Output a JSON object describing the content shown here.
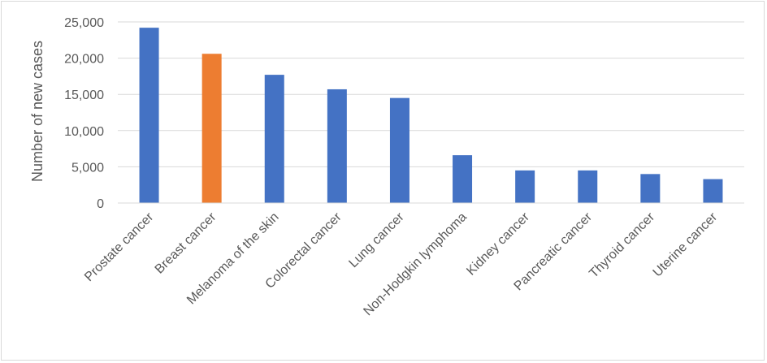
{
  "chart_data": {
    "type": "bar",
    "title": "",
    "xlabel": "",
    "ylabel": "Number of new cases",
    "ylim": [
      0,
      25000
    ],
    "yticks": [
      0,
      5000,
      10000,
      15000,
      20000,
      25000
    ],
    "ytick_labels": [
      "0",
      "5,000",
      "10,000",
      "15,000",
      "20,000",
      "25,000"
    ],
    "grid": true,
    "legend": "none",
    "categories": [
      "Prostate cancer",
      "Breast cancer",
      "Melanoma of the skin",
      "Colorectal cancer",
      "Lung cancer",
      "Non-Hodgkin lymphoma",
      "Kidney cancer",
      "Pancreatic cancer",
      "Thyroid cancer",
      "Uterine cancer"
    ],
    "values": [
      24200,
      20600,
      17700,
      15700,
      14500,
      6600,
      4500,
      4500,
      4000,
      3300
    ],
    "colors": {
      "default": "#4472c4",
      "highlight": "#ed7d31",
      "gridline": "#d9d9d9",
      "text": "#595959"
    },
    "highlight_category": "Breast cancer"
  }
}
